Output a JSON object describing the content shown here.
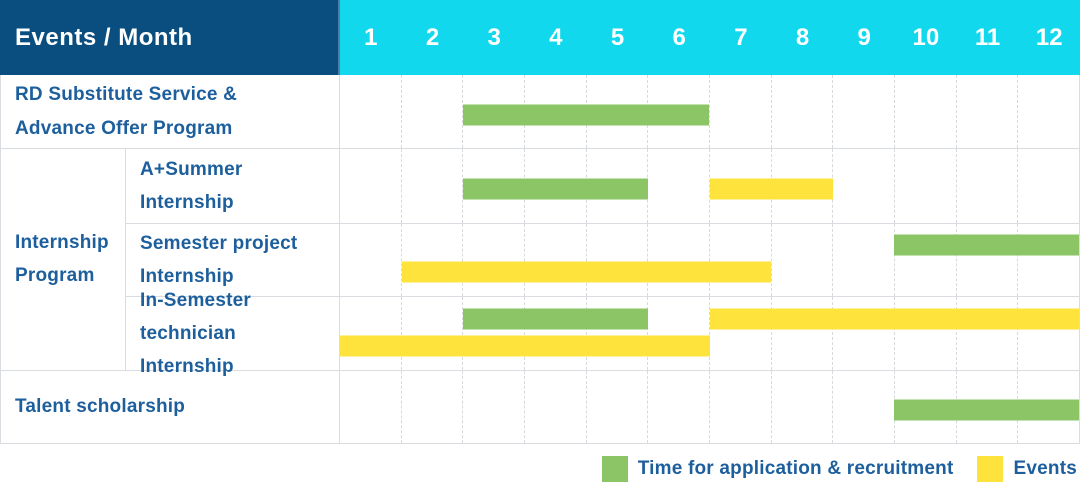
{
  "header": {
    "label": "Events / Month",
    "months": [
      "1",
      "2",
      "3",
      "4",
      "5",
      "6",
      "7",
      "8",
      "9",
      "10",
      "11",
      "12"
    ]
  },
  "rows": [
    {
      "type": "simple",
      "label": "RD Substitute Service &\nAdvance Offer Program",
      "bars": [
        {
          "kind": "recruitment",
          "start_month": 3,
          "end_month": 6,
          "lane": "mid"
        }
      ]
    },
    {
      "type": "group",
      "label": "Internship\nProgram",
      "children": [
        {
          "label": "A+Summer\nInternship",
          "bars": [
            {
              "kind": "recruitment",
              "start_month": 3,
              "end_month": 5,
              "lane": "mid"
            },
            {
              "kind": "event",
              "start_month": 7,
              "end_month": 8,
              "lane": "mid"
            }
          ]
        },
        {
          "label": "Semester project\nInternship",
          "bars": [
            {
              "kind": "recruitment",
              "start_month": 10,
              "end_month": 12,
              "lane": "top"
            },
            {
              "kind": "event",
              "start_month": 2,
              "end_month": 7,
              "lane": "bottom"
            }
          ]
        },
        {
          "label": "In-Semester\ntechnician Internship",
          "bars": [
            {
              "kind": "recruitment",
              "start_month": 3,
              "end_month": 5,
              "lane": "top"
            },
            {
              "kind": "event",
              "start_month": 7,
              "end_month": 12,
              "lane": "top"
            },
            {
              "kind": "event",
              "start_month": 1,
              "end_month": 6,
              "lane": "bottom"
            }
          ]
        }
      ]
    },
    {
      "type": "simple",
      "label": "Talent scholarship",
      "bars": [
        {
          "kind": "recruitment",
          "start_month": 10,
          "end_month": 12,
          "lane": "mid"
        }
      ]
    }
  ],
  "legend": [
    {
      "kind": "recruitment",
      "label": "Time for application & recruitment",
      "color": "#8bc566"
    },
    {
      "kind": "event",
      "label": "Events",
      "color": "#fde33c"
    }
  ],
  "colors": {
    "header_bg": "#094e7f",
    "months_bg": "#12d8ee",
    "recruitment": "#8bc566",
    "event": "#fde33c",
    "label_text": "#1d5f9d",
    "grid_line": "#d9dce1"
  },
  "chart_data": {
    "type": "bar",
    "subtype": "gantt-timeline",
    "title": "Events / Month",
    "xlabel": "Month",
    "x_ticks": [
      1,
      2,
      3,
      4,
      5,
      6,
      7,
      8,
      9,
      10,
      11,
      12
    ],
    "x_range": [
      1,
      12
    ],
    "legend_entries": [
      "Time for application & recruitment",
      "Events"
    ],
    "legend_position": "bottom-right",
    "grid": "vertical-dashed",
    "tasks": [
      {
        "row": "RD Substitute Service & Advance Offer Program",
        "group": null,
        "bars": [
          {
            "series": "Time for application & recruitment",
            "start_month": 3,
            "end_month": 6
          }
        ]
      },
      {
        "row": "A+Summer Internship",
        "group": "Internship Program",
        "bars": [
          {
            "series": "Time for application & recruitment",
            "start_month": 3,
            "end_month": 5
          },
          {
            "series": "Events",
            "start_month": 7,
            "end_month": 8
          }
        ]
      },
      {
        "row": "Semester project Internship",
        "group": "Internship Program",
        "bars": [
          {
            "series": "Time for application & recruitment",
            "start_month": 10,
            "end_month": 12
          },
          {
            "series": "Events",
            "start_month": 2,
            "end_month": 7
          }
        ]
      },
      {
        "row": "In-Semester technician Internship",
        "group": "Internship Program",
        "bars": [
          {
            "series": "Time for application & recruitment",
            "start_month": 3,
            "end_month": 5
          },
          {
            "series": "Events",
            "start_month": 7,
            "end_month": 12
          },
          {
            "series": "Events",
            "start_month": 1,
            "end_month": 6
          }
        ]
      },
      {
        "row": "Talent scholarship",
        "group": null,
        "bars": [
          {
            "series": "Time for application & recruitment",
            "start_month": 10,
            "end_month": 12
          }
        ]
      }
    ]
  }
}
